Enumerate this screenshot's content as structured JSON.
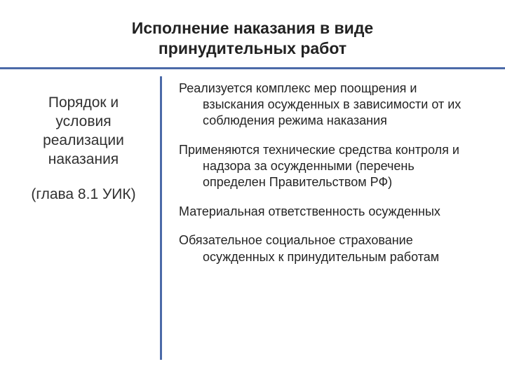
{
  "title_line1": "Исполнение наказания в виде",
  "title_line2": "принудительных работ",
  "left": {
    "heading": "Порядок и условия реализации наказания",
    "chapter": "(глава 8.1 УИК)"
  },
  "right": {
    "items": [
      "Реализуется комплекс мер поощрения и взыскания осужденных в зависимости от их соблюдения режима наказания",
      "Применяются технические средства контроля и надзора за осужденными (перечень определен Правительством РФ)",
      "Материальная ответственность осужденных",
      "Обязательное социальное страхование осужденных к принудительным работам"
    ]
  },
  "colors": {
    "accent": "#4b6aa8",
    "text": "#222222",
    "background": "#ffffff"
  },
  "layout": {
    "slide_width": 720,
    "slide_height": 540,
    "left_col_width": 228,
    "divider_height": 405,
    "title_fontsize": 23,
    "left_fontsize": 21,
    "body_fontsize": 18
  }
}
